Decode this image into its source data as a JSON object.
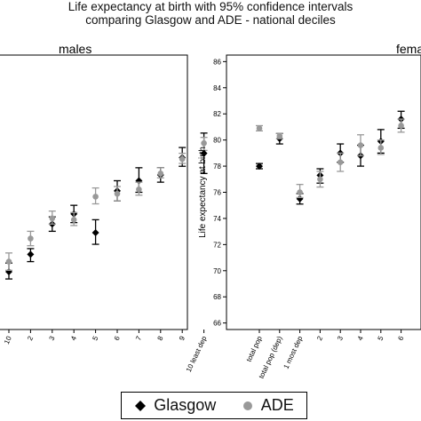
{
  "title_lines": [
    "Life expectancy at birth with 95% confidence intervals",
    "comparing Glasgow and ADE - national deciles"
  ],
  "legend": {
    "items": [
      {
        "label": "Glasgow",
        "marker": "diamond",
        "color": "#000000"
      },
      {
        "label": "ADE",
        "marker": "circle",
        "color": "#999999"
      }
    ]
  },
  "colors": {
    "glasgow": "#000000",
    "ade": "#999999"
  },
  "chart_data": [
    {
      "type": "scatter",
      "title": "males",
      "ylim": [
        62.5,
        81.5
      ],
      "categories": [
        "10",
        "2",
        "3",
        "4",
        "5",
        "6",
        "7",
        "8",
        "9",
        "10 least dep"
      ],
      "series": [
        {
          "name": "Glasgow",
          "values": [
            66.5,
            67.7,
            69.8,
            70.5,
            69.2,
            72.1,
            72.8,
            73.2,
            74.4,
            74.7
          ],
          "ci_low": [
            66.0,
            67.2,
            69.3,
            69.9,
            68.4,
            71.4,
            72.0,
            72.7,
            73.8,
            73.3
          ],
          "ci_high": [
            67.1,
            68.1,
            70.3,
            71.1,
            70.1,
            72.8,
            73.7,
            73.7,
            75.1,
            76.1
          ]
        },
        {
          "name": "ADE",
          "values": [
            67.2,
            68.8,
            70.2,
            70.1,
            71.7,
            71.9,
            72.2,
            73.3,
            74.3,
            75.4
          ],
          "ci_low": [
            66.6,
            68.3,
            69.8,
            69.7,
            71.2,
            71.4,
            71.8,
            73.0,
            74.0,
            74.9
          ],
          "ci_high": [
            67.8,
            69.3,
            70.7,
            70.6,
            72.3,
            72.4,
            72.7,
            73.7,
            74.7,
            75.8
          ]
        }
      ]
    },
    {
      "type": "scatter",
      "title": "females",
      "ylabel": "Life expectancy at birth",
      "ylim": [
        65.5,
        86.5
      ],
      "yticks": [
        66,
        68,
        70,
        72,
        74,
        76,
        78,
        80,
        82,
        84,
        86
      ],
      "categories": [
        "total pop",
        "total pop (dep)",
        "1 most dep",
        "2",
        "3",
        "4",
        "5",
        "6"
      ],
      "series": [
        {
          "name": "Glasgow",
          "values": [
            78.0,
            80.1,
            75.5,
            77.3,
            79.0,
            78.8,
            79.9,
            81.6
          ],
          "ci_low": [
            77.8,
            79.7,
            75.1,
            76.7,
            78.3,
            78.0,
            79.0,
            80.9
          ],
          "ci_high": [
            78.2,
            80.5,
            75.9,
            77.8,
            79.7,
            79.6,
            80.8,
            82.2
          ]
        },
        {
          "name": "ADE",
          "values": [
            80.9,
            80.3,
            76.0,
            77.0,
            78.3,
            79.6,
            79.4,
            81.1
          ],
          "ci_low": [
            80.7,
            80.1,
            75.6,
            76.4,
            77.6,
            78.8,
            78.9,
            80.6
          ],
          "ci_high": [
            81.1,
            80.5,
            76.6,
            77.6,
            79.0,
            80.4,
            80.0,
            81.6
          ]
        }
      ]
    }
  ]
}
